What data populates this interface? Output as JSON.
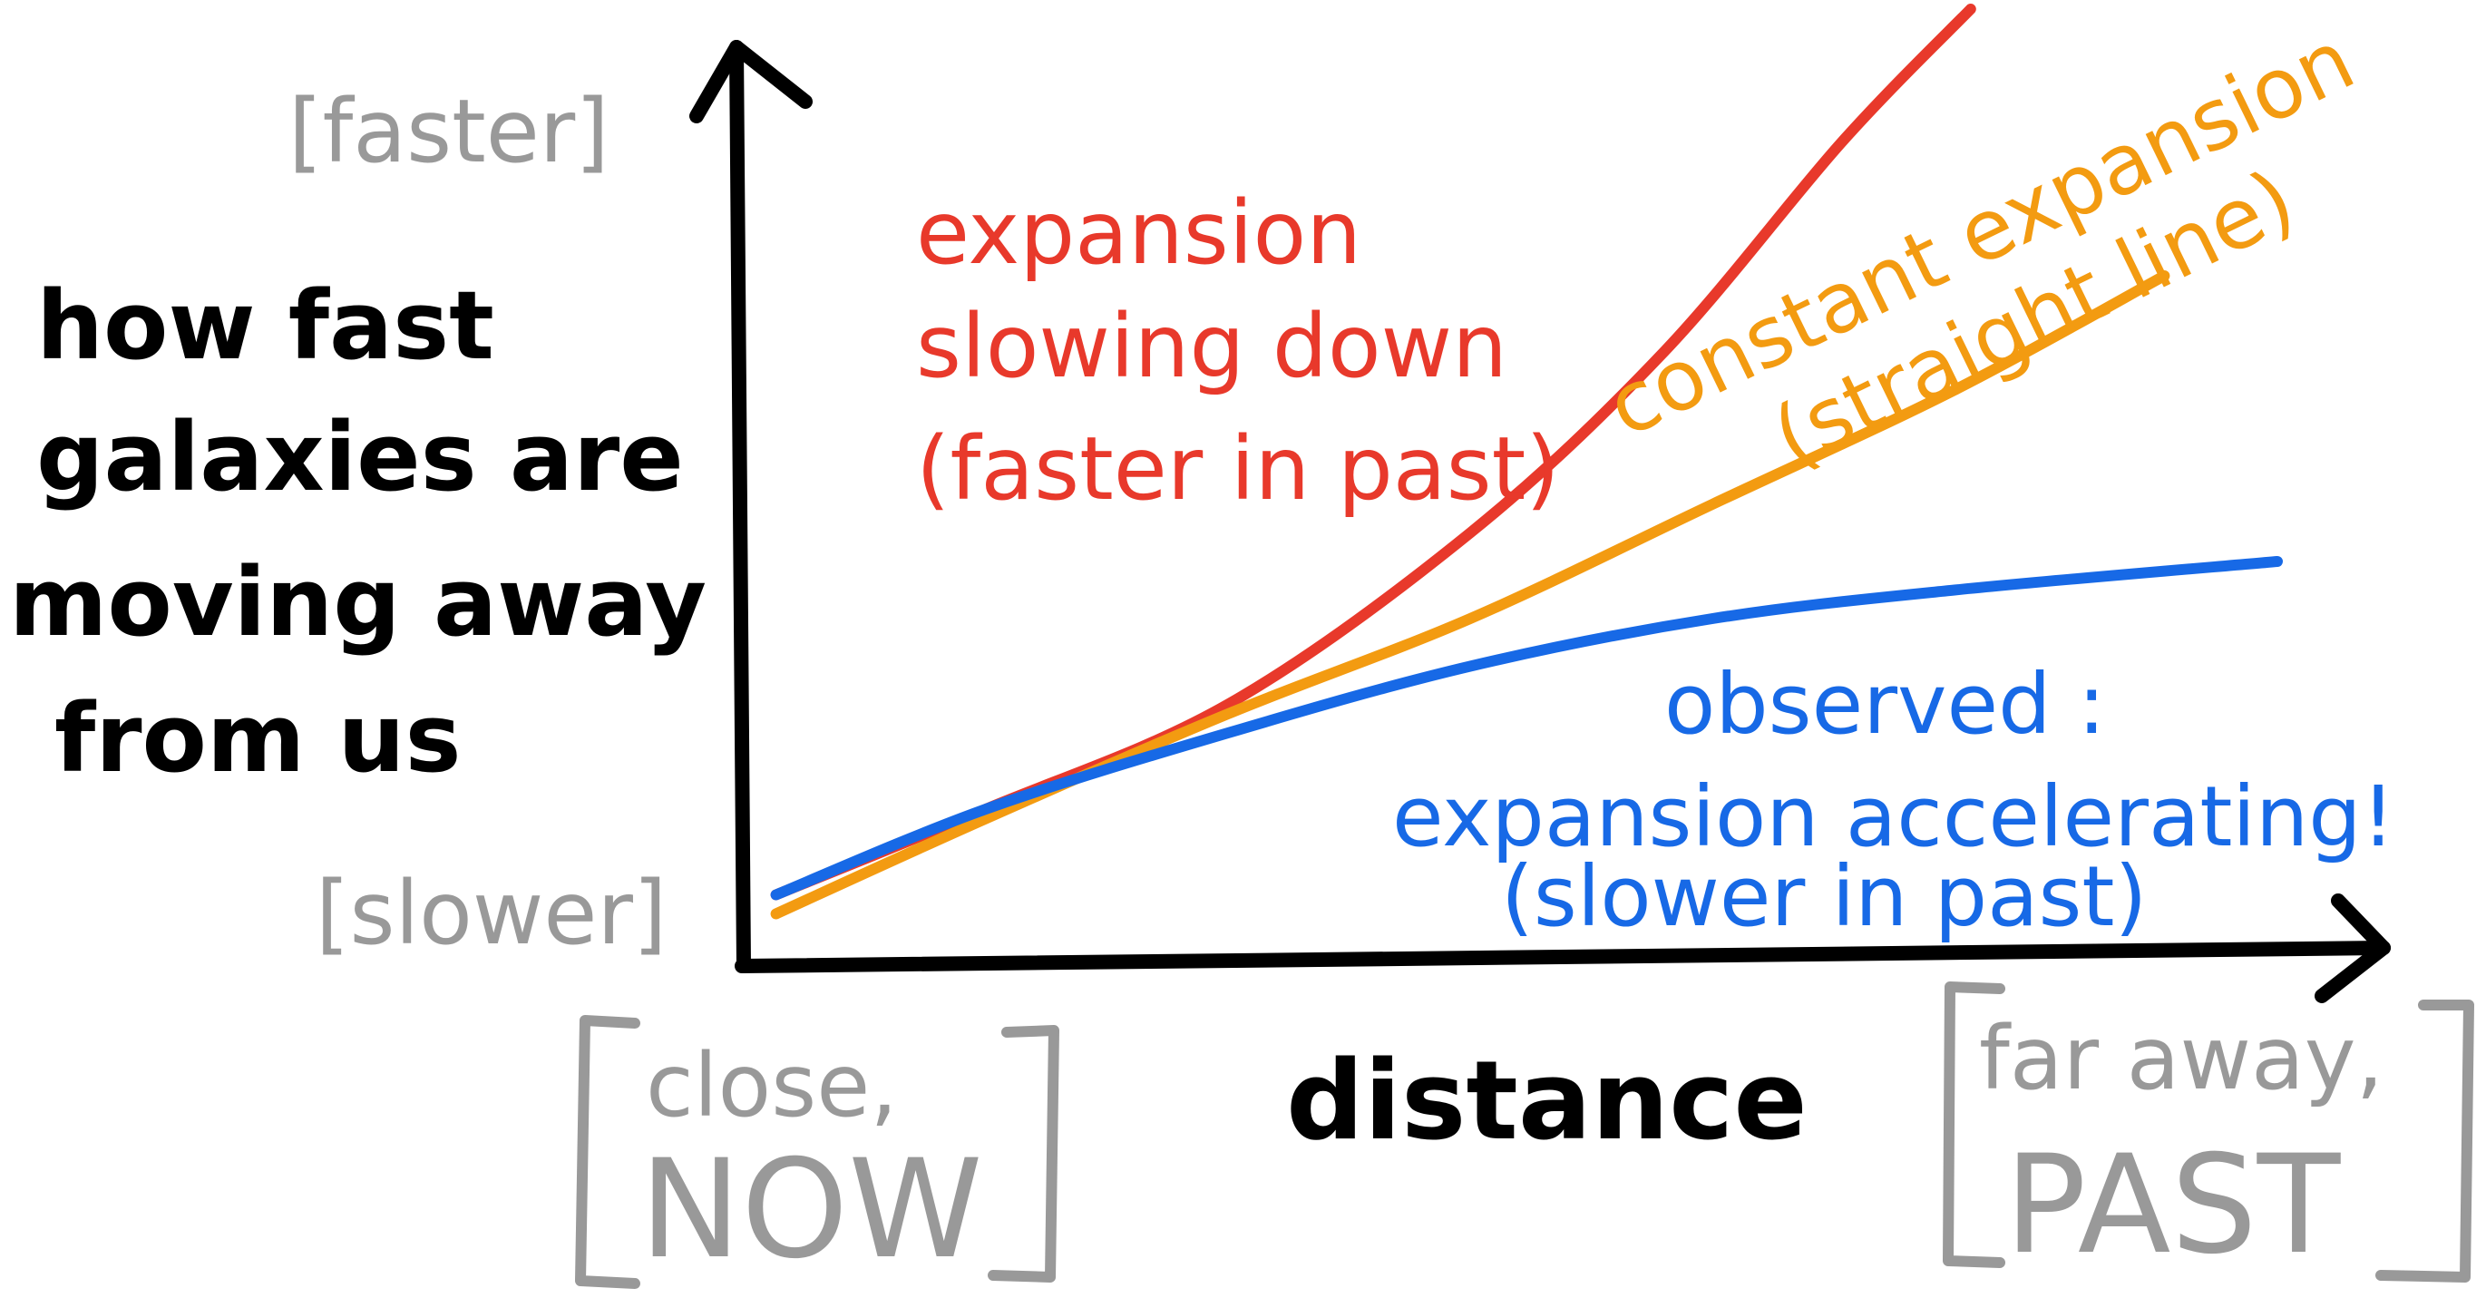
{
  "chart_data": {
    "type": "line",
    "xlabel": "distance",
    "ylabel_lines": [
      "how fast",
      "galaxies are",
      "moving away",
      "from us"
    ],
    "y_axis_markers": {
      "top": "[faster]",
      "bottom": "[slower]"
    },
    "x_axis_markers": {
      "left": [
        "close,",
        "NOW"
      ],
      "right": [
        "far away,",
        "PAST"
      ]
    },
    "x_range": [
      0,
      1
    ],
    "y_range": [
      0,
      1
    ],
    "grid": false,
    "series": [
      {
        "name": "expansion slowing down",
        "color": "#e8392b",
        "annotation_lines": [
          "expansion",
          "slowing down",
          "(faster in past)"
        ],
        "x": [
          0.02,
          0.15,
          0.3,
          0.45,
          0.57,
          0.68,
          0.76
        ],
        "y": [
          0.07,
          0.16,
          0.27,
          0.45,
          0.64,
          0.86,
          1.0
        ]
      },
      {
        "name": "constant expansion",
        "color": "#f39b11",
        "annotation_lines": [
          "constant expansion",
          "(straight line)"
        ],
        "x": [
          0.02,
          0.15,
          0.3,
          0.45,
          0.6,
          0.75,
          0.88
        ],
        "y": [
          0.05,
          0.15,
          0.26,
          0.36,
          0.48,
          0.6,
          0.72
        ]
      },
      {
        "name": "observed",
        "color": "#1769e6",
        "annotation_lines": [
          "observed :",
          "expansion accelerating!",
          "(slower in past)"
        ],
        "x": [
          0.02,
          0.15,
          0.3,
          0.45,
          0.6,
          0.75,
          0.95
        ],
        "y": [
          0.07,
          0.16,
          0.24,
          0.31,
          0.36,
          0.39,
          0.42
        ]
      }
    ],
    "colors": {
      "axis": "#000000",
      "label": "#000000",
      "marker_gray": "#999999"
    }
  }
}
